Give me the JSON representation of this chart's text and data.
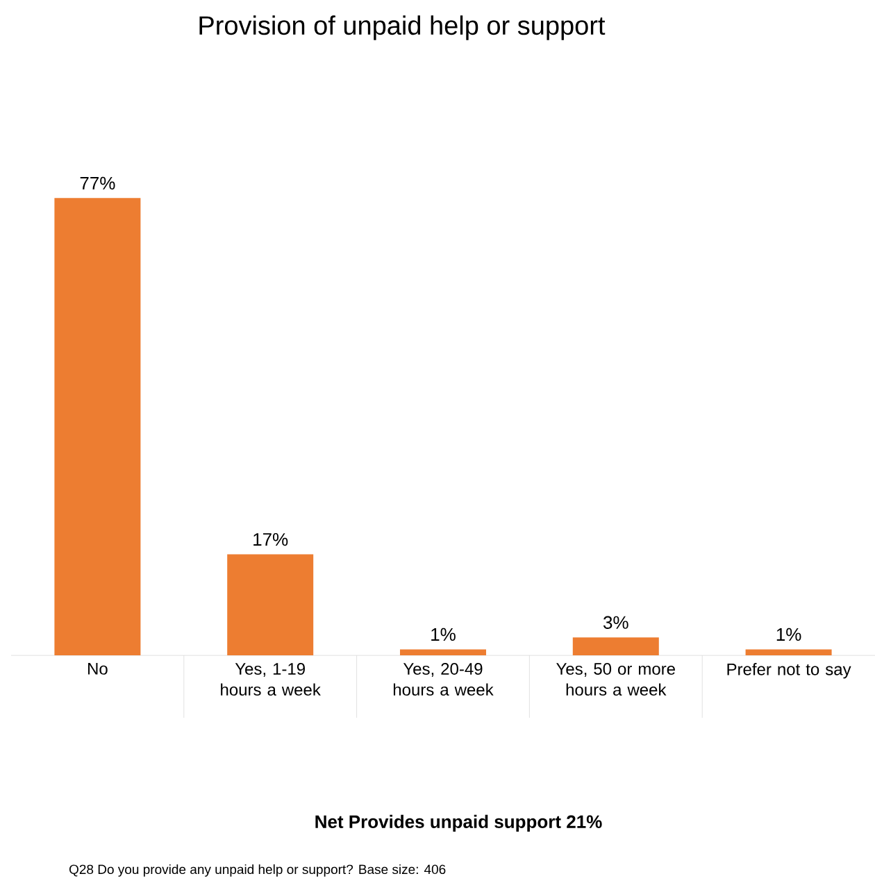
{
  "chart_data": {
    "type": "bar",
    "title": "Provision of unpaid help or support",
    "categories": [
      "No",
      "Yes, 1-19 hours a week",
      "Yes, 20-49 hours a week",
      "Yes, 50 or more hours a week",
      "Prefer not to say"
    ],
    "values": [
      77,
      17,
      1,
      3,
      1
    ],
    "value_labels": [
      "77%",
      "17%",
      "1%",
      "3%",
      "1%"
    ],
    "color": "#ed7d31",
    "annotations": [
      "Net Provides unpaid support 21%",
      "Q28 Do you provide any unpaid help or support? Base size: 406"
    ]
  }
}
